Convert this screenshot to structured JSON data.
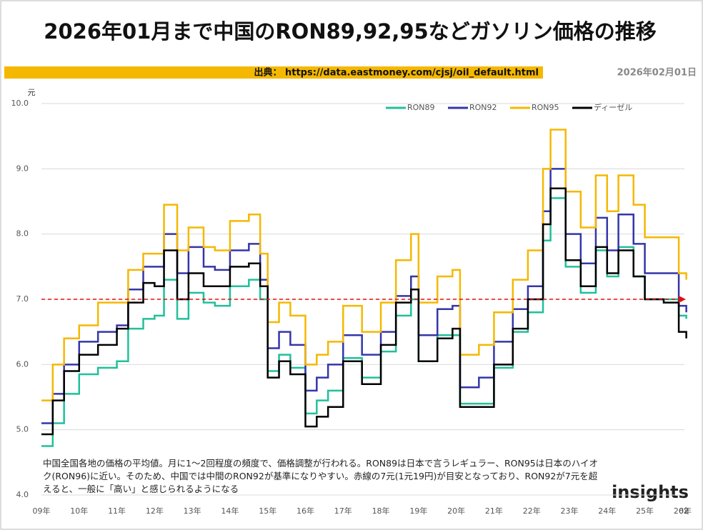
{
  "chart_data": {
    "type": "line",
    "step": true,
    "title": "2026年01月まで中国のRON89,92,95などガソリン価格の推移",
    "source": "出典： https://data.eastmoney.com/cjsj/oil_default.html",
    "date": "2026年02月01日",
    "y_unit": "元",
    "note": "中国全国各地の価格の平均値。月に1～2回程度の頻度で、価格調整が行われる。RON89は日本で言うレギュラー、RON95は日本のハイオク(RON96)に近い。そのため、中国では中間のRON92が基準になりやすい。赤線の7元(1元19円)が目安となっており、RON92が7元を超えると、一般に「高い」と感じられるようになる",
    "logo": "insights",
    "end_label": "02",
    "x": [
      2009.0,
      2009.3,
      2009.6,
      2010.0,
      2010.5,
      2011.0,
      2011.3,
      2011.7,
      2012.0,
      2012.25,
      2012.6,
      2012.9,
      2013.3,
      2013.6,
      2014.0,
      2014.5,
      2014.8,
      2015.0,
      2015.3,
      2015.6,
      2016.0,
      2016.3,
      2016.6,
      2017.0,
      2017.5,
      2018.0,
      2018.4,
      2018.8,
      2019.0,
      2019.5,
      2019.9,
      2020.1,
      2020.6,
      2021.0,
      2021.5,
      2021.9,
      2022.3,
      2022.5,
      2022.9,
      2023.3,
      2023.7,
      2024.0,
      2024.3,
      2024.7,
      2025.0,
      2025.5,
      2025.9,
      2026.1
    ],
    "series": [
      {
        "name": "RON89",
        "color": "#20c09a",
        "values": [
          4.75,
          5.1,
          5.55,
          5.85,
          5.95,
          6.05,
          6.55,
          6.7,
          6.75,
          7.3,
          6.7,
          7.1,
          6.95,
          6.9,
          7.2,
          7.3,
          7.0,
          5.9,
          6.15,
          5.95,
          5.25,
          5.45,
          5.6,
          6.1,
          5.8,
          6.2,
          6.75,
          7.0,
          6.05,
          6.45,
          6.45,
          5.4,
          5.4,
          5.95,
          6.5,
          6.8,
          7.9,
          8.55,
          7.5,
          7.1,
          7.75,
          7.35,
          7.8,
          7.35,
          7.0,
          7.0,
          6.75,
          6.7
        ]
      },
      {
        "name": "RON92",
        "color": "#3535a8",
        "values": [
          5.1,
          5.55,
          6.0,
          6.35,
          6.5,
          6.6,
          7.15,
          7.5,
          7.5,
          8.0,
          7.4,
          7.8,
          7.5,
          7.45,
          7.75,
          7.85,
          7.3,
          6.25,
          6.5,
          6.3,
          5.6,
          5.8,
          6.0,
          6.45,
          6.15,
          6.5,
          7.05,
          7.35,
          6.45,
          6.85,
          6.9,
          5.65,
          5.8,
          6.35,
          6.85,
          7.2,
          8.35,
          9.0,
          8.0,
          7.55,
          8.25,
          7.75,
          8.3,
          7.85,
          7.4,
          7.4,
          6.9,
          6.8
        ]
      },
      {
        "name": "RON95",
        "color": "#f5b800",
        "values": [
          5.45,
          6.0,
          6.4,
          6.6,
          6.95,
          6.95,
          7.45,
          7.7,
          7.7,
          8.45,
          7.75,
          8.1,
          7.8,
          7.75,
          8.2,
          8.3,
          7.7,
          6.65,
          6.95,
          6.75,
          6.0,
          6.15,
          6.35,
          6.9,
          6.5,
          6.95,
          7.6,
          8.0,
          6.95,
          7.35,
          7.45,
          6.15,
          6.3,
          6.8,
          7.3,
          7.75,
          9.0,
          9.6,
          8.65,
          8.1,
          8.9,
          8.35,
          8.9,
          8.45,
          7.95,
          7.95,
          7.4,
          7.3
        ]
      },
      {
        "name": "ディーゼル",
        "color": "#000000",
        "values": [
          4.93,
          5.45,
          5.9,
          6.15,
          6.3,
          6.55,
          6.95,
          7.25,
          7.2,
          7.75,
          7.0,
          7.4,
          7.2,
          7.2,
          7.5,
          7.55,
          7.2,
          5.8,
          6.05,
          5.85,
          5.05,
          5.2,
          5.35,
          6.05,
          5.7,
          6.3,
          6.95,
          7.15,
          6.05,
          6.4,
          6.55,
          5.35,
          5.35,
          6.0,
          6.55,
          7.0,
          8.15,
          8.7,
          7.6,
          7.2,
          7.8,
          7.4,
          7.75,
          7.35,
          7.0,
          6.95,
          6.5,
          6.4
        ]
      }
    ],
    "xlim": [
      2009,
      2026.05
    ],
    "xticks": [
      {
        "value": 2009,
        "label": "09年"
      },
      {
        "value": 2010,
        "label": "10年"
      },
      {
        "value": 2011,
        "label": "11年"
      },
      {
        "value": 2012,
        "label": "12年"
      },
      {
        "value": 2013,
        "label": "13年"
      },
      {
        "value": 2014,
        "label": "14年"
      },
      {
        "value": 2015,
        "label": "15年"
      },
      {
        "value": 2016,
        "label": "16年"
      },
      {
        "value": 2017,
        "label": "17年"
      },
      {
        "value": 2018,
        "label": "18年"
      },
      {
        "value": 2019,
        "label": "19年"
      },
      {
        "value": 2020,
        "label": "20年"
      },
      {
        "value": 2021,
        "label": "21年"
      },
      {
        "value": 2022,
        "label": "22年"
      },
      {
        "value": 2023,
        "label": "23年"
      },
      {
        "value": 2024,
        "label": "24年"
      },
      {
        "value": 2025,
        "label": "25年"
      },
      {
        "value": 2026,
        "label": "26年"
      }
    ],
    "ylim": [
      4,
      10
    ],
    "yticks": [
      {
        "value": 4,
        "label": "4.0"
      },
      {
        "value": 5,
        "label": "5.0"
      },
      {
        "value": 6,
        "label": "6.0"
      },
      {
        "value": 7,
        "label": "7.0"
      },
      {
        "value": 8,
        "label": "8.0"
      },
      {
        "value": 9,
        "label": "9.0"
      },
      {
        "value": 10,
        "label": "10.0"
      }
    ],
    "grid": true,
    "ref_line": {
      "value": 7,
      "color": "#e01010"
    }
  }
}
